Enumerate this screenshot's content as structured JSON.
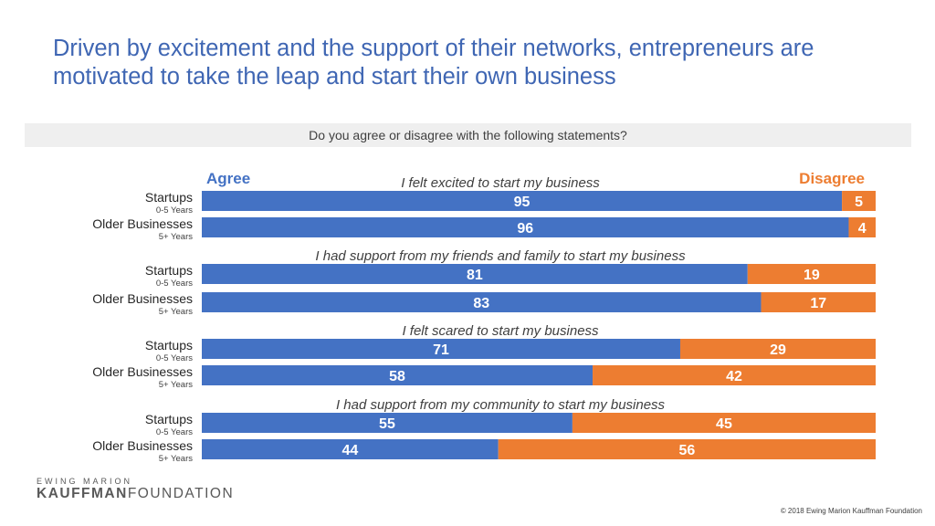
{
  "slide": {
    "title": "Driven by excitement and the support of their networks, entrepreneurs are motivated to take the leap and start their own business",
    "question": "Do you agree or disagree with the following statements?",
    "copyright": "© 2018 Ewing Marion Kauffman Foundation"
  },
  "logo": {
    "top_text": "EWING MARION",
    "bold_text": "KAUFFMAN",
    "regular_text": "FOUNDATION"
  },
  "colors": {
    "agree": "#4472c4",
    "disagree": "#ed7d31",
    "title": "#3f66b3"
  },
  "chart_data": {
    "type": "bar",
    "orientation": "horizontal",
    "stacked": true,
    "series": [
      {
        "name": "Agree",
        "color": "#4472c4"
      },
      {
        "name": "Disagree",
        "color": "#ed7d31"
      }
    ],
    "xlim": [
      0,
      100
    ],
    "groups": [
      {
        "statement": "I felt excited to start my business",
        "rows": [
          {
            "label": "Startups",
            "sublabel": "0-5 Years",
            "agree": 95,
            "disagree": 5
          },
          {
            "label": "Older Businesses",
            "sublabel": "5+ Years",
            "agree": 96,
            "disagree": 4
          }
        ]
      },
      {
        "statement": "I had support from my friends and family to start my business",
        "rows": [
          {
            "label": "Startups",
            "sublabel": "0-5 Years",
            "agree": 81,
            "disagree": 19
          },
          {
            "label": "Older Businesses",
            "sublabel": "5+ Years",
            "agree": 83,
            "disagree": 17
          }
        ]
      },
      {
        "statement": "I felt scared to start my business",
        "rows": [
          {
            "label": "Startups",
            "sublabel": "0-5 Years",
            "agree": 71,
            "disagree": 29
          },
          {
            "label": "Older Businesses",
            "sublabel": "5+ Years",
            "agree": 58,
            "disagree": 42
          }
        ]
      },
      {
        "statement": "I had support from my community to start my business",
        "rows": [
          {
            "label": "Startups",
            "sublabel": "0-5 Years",
            "agree": 55,
            "disagree": 45
          },
          {
            "label": "Older Businesses",
            "sublabel": "5+ Years",
            "agree": 44,
            "disagree": 56
          }
        ]
      }
    ]
  }
}
